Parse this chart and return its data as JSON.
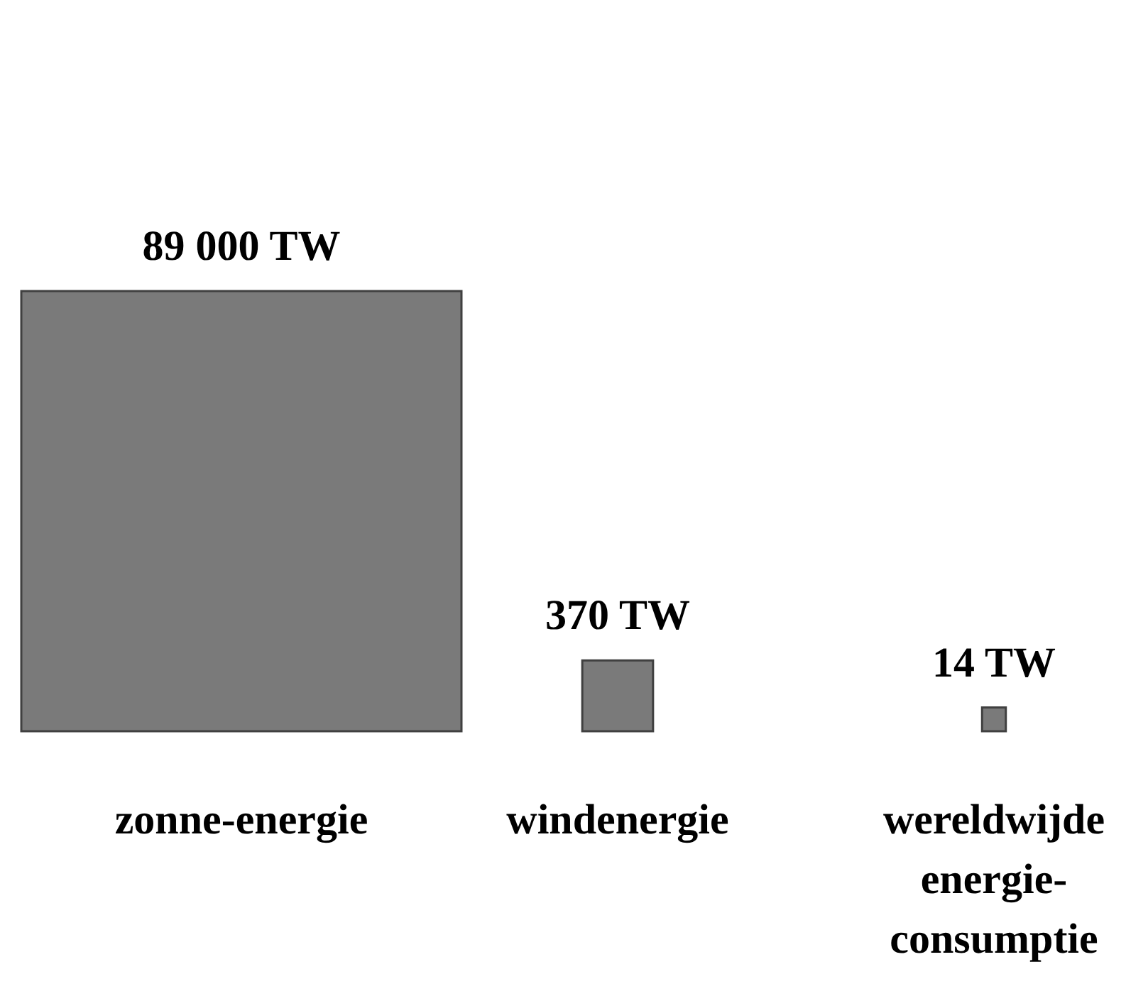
{
  "chart_data": {
    "type": "other",
    "categories": [
      "zonne-energie",
      "windenergie",
      "wereldwijde\nenergie-\nconsumptie"
    ],
    "values": [
      89000,
      370,
      14
    ],
    "value_labels": [
      "89 000 TW",
      "370 TW",
      "14 TW"
    ],
    "color": "#7a7a7a"
  }
}
